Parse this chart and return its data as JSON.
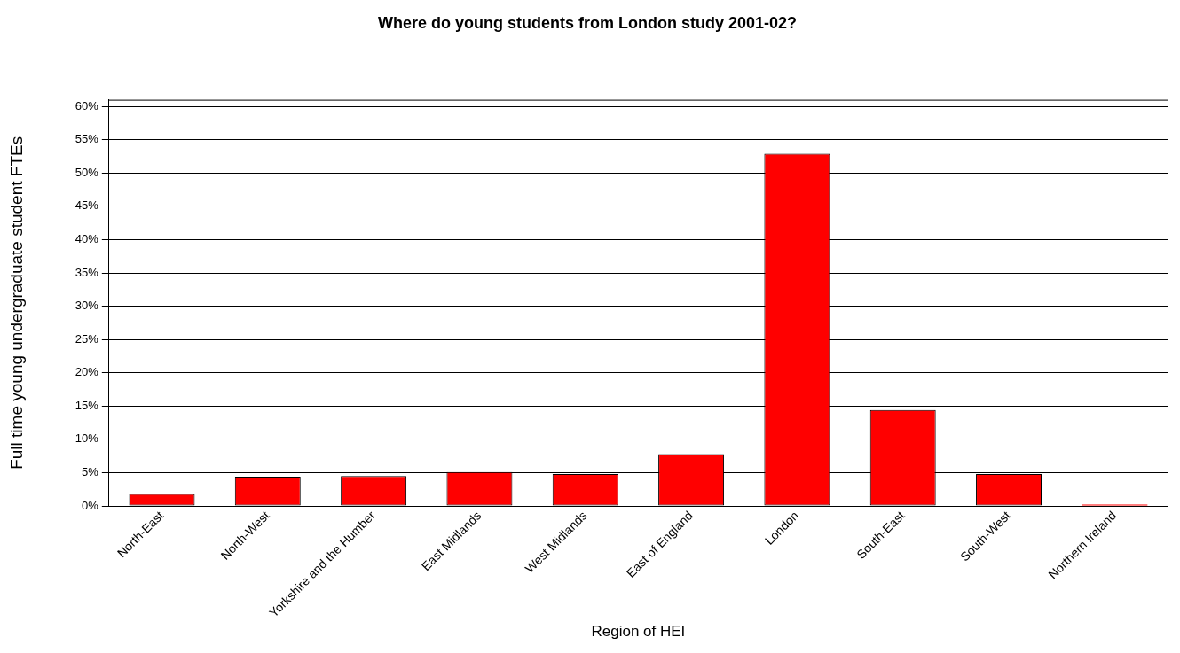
{
  "chart_data": {
    "type": "bar",
    "title": "Where do young students from London study 2001-02?",
    "xlabel": "Region of HEI",
    "ylabel": "Full time young undergraduate student FTEs",
    "categories": [
      "North-East",
      "North-West",
      "Yorkshire and the Humber",
      "East Midlands",
      "West Midlands",
      "East of England",
      "London",
      "South-East",
      "South-West",
      "Northern Ireland"
    ],
    "values": [
      1.8,
      4.4,
      4.5,
      5.1,
      4.8,
      7.8,
      52.9,
      14.4,
      4.8,
      0.2
    ],
    "color": "#ff0000",
    "ylim": [
      0,
      61
    ],
    "yticks": [
      {
        "value": 0,
        "label": "0%"
      },
      {
        "value": 5,
        "label": "5%"
      },
      {
        "value": 10,
        "label": "10%"
      },
      {
        "value": 15,
        "label": "15%"
      },
      {
        "value": 20,
        "label": "20%"
      },
      {
        "value": 25,
        "label": "25%"
      },
      {
        "value": 30,
        "label": "30%"
      },
      {
        "value": 35,
        "label": "35%"
      },
      {
        "value": 40,
        "label": "40%"
      },
      {
        "value": 45,
        "label": "45%"
      },
      {
        "value": 50,
        "label": "50%"
      },
      {
        "value": 55,
        "label": "55%"
      },
      {
        "value": 60,
        "label": "60%"
      }
    ],
    "grid": "y",
    "legend": false
  }
}
